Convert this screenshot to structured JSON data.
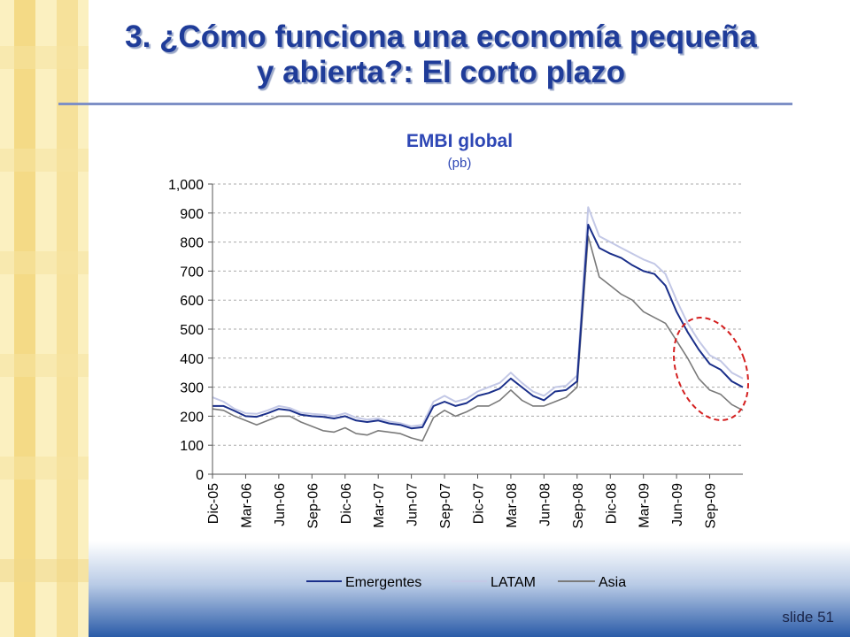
{
  "slide": {
    "title_line1": "3. ¿Cómo funciona una economía pequeña",
    "title_line2": "y abierta?: El corto plazo",
    "slide_number": "slide 51"
  },
  "colors": {
    "title": "#1f3c99",
    "chart_title": "#2e47b5",
    "emergentes": "#1a2f8a",
    "latam": "#c3c8e6",
    "asia": "#7a7a7a",
    "highlight_ellipse": "#d42020",
    "sidebar_light": "#fbf0c0",
    "sidebar_dark": "#f4da86",
    "bottom_band": "#2a5ba8"
  },
  "chart_data": {
    "type": "line",
    "title": "EMBI global",
    "subtitle": "(pb)",
    "ylim": [
      0,
      1000
    ],
    "yticks": [
      0,
      100,
      200,
      300,
      400,
      500,
      600,
      700,
      800,
      900,
      1000
    ],
    "ytick_labels": [
      "0",
      "100",
      "200",
      "300",
      "400",
      "500",
      "600",
      "700",
      "800",
      "900",
      "1,000"
    ],
    "x_tick_labels": [
      "Dic-05",
      "Mar-06",
      "Jun-06",
      "Sep-06",
      "Dic-06",
      "Mar-07",
      "Jun-07",
      "Sep-07",
      "Dic-07",
      "Mar-08",
      "Jun-08",
      "Sep-08",
      "Dic-08",
      "Mar-09",
      "Jun-09",
      "Sep-09"
    ],
    "x_range": [
      "Dic-05",
      "Dic-09"
    ],
    "grid": "horizontal dashed",
    "legend_position": "bottom",
    "annotation": "dashed red ellipse around 2009 decline",
    "x": [
      "2005-12",
      "2006-01",
      "2006-02",
      "2006-03",
      "2006-04",
      "2006-05",
      "2006-06",
      "2006-07",
      "2006-08",
      "2006-09",
      "2006-10",
      "2006-11",
      "2006-12",
      "2007-01",
      "2007-02",
      "2007-03",
      "2007-04",
      "2007-05",
      "2007-06",
      "2007-07",
      "2007-08",
      "2007-09",
      "2007-10",
      "2007-11",
      "2007-12",
      "2008-01",
      "2008-02",
      "2008-03",
      "2008-04",
      "2008-05",
      "2008-06",
      "2008-07",
      "2008-08",
      "2008-09",
      "2008-10",
      "2008-11",
      "2008-12",
      "2009-01",
      "2009-02",
      "2009-03",
      "2009-04",
      "2009-05",
      "2009-06",
      "2009-07",
      "2009-08",
      "2009-09",
      "2009-10",
      "2009-11",
      "2009-12"
    ],
    "series": [
      {
        "name": "Emergentes",
        "values": [
          235,
          235,
          218,
          200,
          198,
          210,
          225,
          220,
          205,
          200,
          198,
          192,
          200,
          185,
          180,
          185,
          175,
          170,
          158,
          162,
          235,
          250,
          235,
          245,
          270,
          280,
          295,
          330,
          300,
          270,
          255,
          285,
          290,
          320,
          860,
          780,
          760,
          745,
          720,
          700,
          690,
          650,
          560,
          490,
          430,
          380,
          360,
          320,
          300
        ]
      },
      {
        "name": "LATAM",
        "values": [
          265,
          250,
          225,
          210,
          208,
          220,
          235,
          228,
          212,
          208,
          205,
          200,
          210,
          195,
          188,
          192,
          182,
          176,
          165,
          170,
          250,
          270,
          250,
          260,
          285,
          300,
          315,
          350,
          315,
          285,
          270,
          300,
          305,
          340,
          920,
          820,
          800,
          780,
          760,
          740,
          725,
          690,
          600,
          520,
          460,
          410,
          390,
          350,
          330
        ]
      },
      {
        "name": "Asia",
        "values": [
          225,
          220,
          200,
          185,
          170,
          185,
          200,
          200,
          180,
          165,
          150,
          145,
          160,
          140,
          135,
          150,
          145,
          140,
          125,
          115,
          195,
          220,
          200,
          215,
          235,
          235,
          255,
          290,
          255,
          235,
          235,
          250,
          265,
          300,
          820,
          680,
          650,
          620,
          600,
          560,
          540,
          520,
          460,
          400,
          330,
          290,
          275,
          240,
          220
        ]
      }
    ]
  }
}
